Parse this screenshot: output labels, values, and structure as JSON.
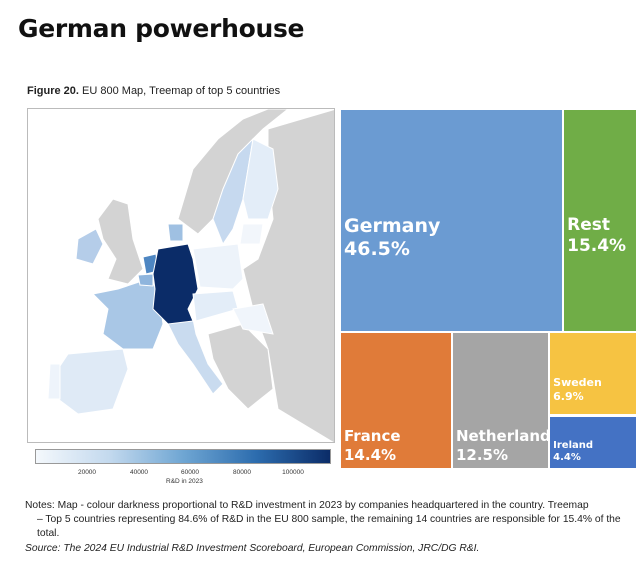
{
  "page_title": "German powerhouse",
  "figure": {
    "number": "Figure 20.",
    "caption": "EU 800 Map, Treemap of top 5 countries"
  },
  "colorbar": {
    "ticks": [
      "20000",
      "40000",
      "60000",
      "80000",
      "100000"
    ],
    "label": "R&D  in 2023",
    "colors": [
      "#f4f8fc",
      "#0b2c68"
    ]
  },
  "chart_data": {
    "type": "treemap",
    "items": [
      {
        "name": "Germany",
        "label": "46.5%",
        "value": 46.5,
        "color": "#6b9bd2"
      },
      {
        "name": "Rest",
        "label": "15.4%",
        "value": 15.4,
        "color": "#70ad47"
      },
      {
        "name": "France",
        "label": "14.4%",
        "value": 14.4,
        "color": "#e07b39"
      },
      {
        "name": "Netherlands",
        "label": "12.5%",
        "value": 12.5,
        "color": "#a5a5a5"
      },
      {
        "name": "Sweden",
        "label": "6.9%",
        "value": 6.9,
        "color": "#f6c342"
      },
      {
        "name": "Ireland",
        "label": "4.4%",
        "value": 4.4,
        "color": "#4472c4"
      }
    ]
  },
  "notes": {
    "line1": "Notes: Map - colour darkness proportional to R&D investment in 2023 by companies headquartered in the country. Treemap",
    "line2": "– Top 5 countries representing 84.6% of R&D in the EU 800 sample, the remaining 14 countries are responsible for 15.4% of the total."
  },
  "source": "Source: The 2024 EU Industrial R&D Investment Scoreboard, European Commission, JRC/DG R&I."
}
